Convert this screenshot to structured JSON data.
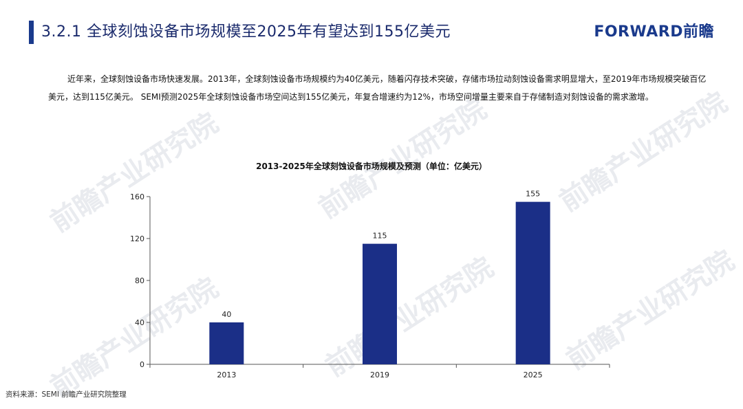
{
  "header": {
    "title": "3.2.1 全球刻蚀设备市场规模至2025年有望达到155亿美元",
    "brand": "FORWARD前瞻"
  },
  "intro": {
    "text": "近年来，全球刻蚀设备市场快速发展。2013年，全球刻蚀设备市场规模约为40亿美元，随着闪存技术突破，存储市场拉动刻蚀设备需求明显增大，至2019年市场规模突破百亿美元，达到115亿美元。 SEMI预测2025年全球刻蚀设备市场空间达到155亿美元，年复合增速约为12%，市场空间增量主要来自于存储制造对刻蚀设备的需求激增。"
  },
  "watermark": {
    "text": "前瞻产业研究院"
  },
  "chart_data": {
    "type": "bar",
    "title": "2013-2025年全球刻蚀设备市场规模及预测（单位：亿美元）",
    "categories": [
      "2013",
      "2019",
      "2025"
    ],
    "values": [
      40,
      115,
      155
    ],
    "data_labels": [
      "40",
      "115",
      "155"
    ],
    "ylim": [
      0,
      160
    ],
    "yticks": [
      0,
      40,
      80,
      120,
      160
    ],
    "ytick_labels": [
      "0",
      "40",
      "80",
      "120",
      "160"
    ],
    "xlabel": "",
    "ylabel": "",
    "grid": false,
    "legend": "none",
    "bar_color": "#1b2f87"
  },
  "footer": {
    "source": "资料来源：SEMI 前瞻产业研究院整理"
  }
}
